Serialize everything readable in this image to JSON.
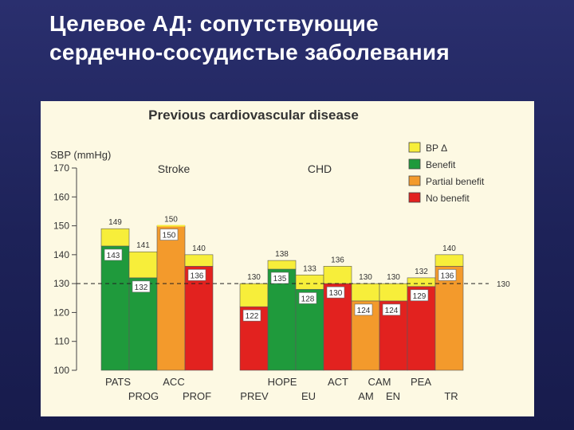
{
  "slide": {
    "title_line1": "Целевое АД: сопутствующие",
    "title_line2": "сердечно-сосудистые заболевания"
  },
  "chart_data": {
    "type": "bar",
    "title": "Previous cardiovascular disease",
    "ylabel": "SBP (mmHg)",
    "ylim": [
      100,
      170
    ],
    "yticks": [
      100,
      110,
      120,
      130,
      140,
      150,
      160,
      170
    ],
    "reference_line": {
      "value": 130,
      "label": "130"
    },
    "group_labels": [
      "Stroke",
      "CHD"
    ],
    "legend": [
      {
        "label": "BP Δ",
        "color": "#f7ee3a"
      },
      {
        "label": "Benefit",
        "color": "#1f9a3c"
      },
      {
        "label": "Partial benefit",
        "color": "#f39a2c"
      },
      {
        "label": "No benefit",
        "color": "#e2221f"
      }
    ],
    "trials": [
      {
        "name": "PATS",
        "row": "top",
        "group": "Stroke",
        "start": 149,
        "end": 143,
        "outcome": "Benefit",
        "start_label": "149",
        "end_label": "143"
      },
      {
        "name": "PROG",
        "row": "bottom",
        "group": "Stroke",
        "start": 141,
        "end": 132,
        "outcome": "Benefit",
        "start_label": "141",
        "end_label": "132"
      },
      {
        "name": "ACC",
        "row": "top",
        "group": "Stroke",
        "start": 150,
        "end": 150,
        "outcome": "Partial benefit",
        "start_label": "150",
        "end_label": "150"
      },
      {
        "name": "PROF",
        "row": "bottom",
        "group": "Stroke",
        "start": 140,
        "end": 136,
        "outcome": "No benefit",
        "start_label": "140",
        "end_label": "136"
      },
      {
        "name": "PREV",
        "row": "bottom",
        "group": "CHD",
        "start": 130,
        "end": 122,
        "outcome": "No benefit",
        "start_label": "130",
        "end_label": "122"
      },
      {
        "name": "HOPE",
        "row": "top",
        "group": "CHD",
        "start": 138,
        "end": 135,
        "outcome": "Benefit",
        "start_label": "138",
        "end_label": "135"
      },
      {
        "name": "EU",
        "row": "bottom",
        "group": "CHD",
        "start": 133,
        "end": 128,
        "outcome": "Benefit",
        "start_label": "133",
        "end_label": "128"
      },
      {
        "name": "ACT",
        "row": "top",
        "group": "CHD",
        "start": 136,
        "end": 130,
        "outcome": "No benefit",
        "start_label": "136",
        "end_label": "130"
      },
      {
        "name": "AM",
        "row": "bottom",
        "group": "CHD",
        "start": 130,
        "end": 124,
        "outcome": "Partial benefit",
        "start_label": "130",
        "end_label": "124"
      },
      {
        "name": "EN",
        "row": "bottom",
        "group": "CHD",
        "start": 130,
        "end": 124,
        "outcome": "No benefit",
        "start_label": "130",
        "end_label": "124"
      },
      {
        "name": "PEA",
        "row": "top",
        "group": "CHD",
        "start": 132,
        "end": 129,
        "outcome": "No benefit",
        "start_label": "132",
        "end_label": "129"
      },
      {
        "name": "TR",
        "row": "bottom",
        "group": "CHD",
        "start": 140,
        "end": 136,
        "outcome": "Partial benefit",
        "start_label": "140",
        "end_label": "136"
      }
    ],
    "extra_category_labels": [
      {
        "text": "CAM",
        "row": "top"
      }
    ]
  }
}
